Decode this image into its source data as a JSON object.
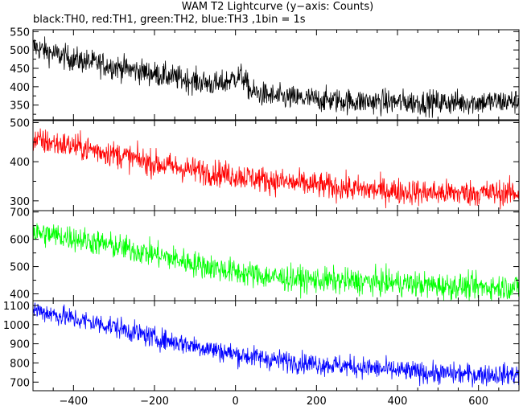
{
  "chart_data": {
    "type": "line",
    "title": "WAM T2 Lightcurve (y−axis: Counts)",
    "subtitle": "black:TH0, red:TH1, green:TH2, blue:TH3 ,1bin = 1s",
    "xlim": [
      -500,
      700
    ],
    "xticks": [
      -400,
      -200,
      0,
      200,
      400,
      600
    ],
    "xtick_labels": [
      "−400",
      "−200",
      "0",
      "200",
      "400",
      "600"
    ],
    "grid": false,
    "panels": [
      {
        "name": "TH0",
        "color": "#000000",
        "ylim": [
          310,
          555
        ],
        "yticks": [
          350,
          400,
          450,
          500,
          550
        ],
        "ytick_labels": [
          "350",
          "400",
          "450",
          "500",
          "550"
        ],
        "trend_x": [
          -500,
          -450,
          -400,
          -300,
          -200,
          -100,
          -40,
          0,
          15,
          40,
          100,
          200,
          300,
          400,
          500,
          600,
          700
        ],
        "trend_y": [
          510,
          490,
          475,
          455,
          435,
          415,
          405,
          425,
          430,
          385,
          372,
          365,
          360,
          358,
          357,
          358,
          360
        ],
        "noise_sigma": 17
      },
      {
        "name": "TH1",
        "color": "#ff0000",
        "ylim": [
          275,
          505
        ],
        "yticks": [
          300,
          400,
          500
        ],
        "ytick_labels": [
          "300",
          "400",
          "500"
        ],
        "trend_x": [
          -500,
          -400,
          -300,
          -200,
          -100,
          0,
          100,
          200,
          300,
          400,
          500,
          600,
          700
        ],
        "trend_y": [
          455,
          440,
          420,
          395,
          378,
          365,
          350,
          340,
          330,
          325,
          320,
          320,
          320
        ],
        "noise_sigma": 17
      },
      {
        "name": "TH2",
        "color": "#00ff00",
        "ylim": [
          375,
          705
        ],
        "yticks": [
          400,
          500,
          600,
          700
        ],
        "ytick_labels": [
          "400",
          "500",
          "600",
          "700"
        ],
        "trend_x": [
          -500,
          -400,
          -300,
          -200,
          -100,
          0,
          100,
          200,
          300,
          400,
          500,
          600,
          700
        ],
        "trend_y": [
          625,
          605,
          575,
          545,
          510,
          480,
          460,
          450,
          445,
          440,
          430,
          425,
          425
        ],
        "noise_sigma": 24
      },
      {
        "name": "TH3",
        "color": "#0000ff",
        "ylim": [
          655,
          1125
        ],
        "yticks": [
          700,
          800,
          900,
          1000,
          1100
        ],
        "ytick_labels": [
          "700",
          "800",
          "900",
          "1000",
          "1100"
        ],
        "trend_x": [
          -500,
          -400,
          -300,
          -200,
          -100,
          0,
          100,
          200,
          300,
          400,
          500,
          600,
          700
        ],
        "trend_y": [
          1080,
          1030,
          990,
          930,
          890,
          845,
          815,
          795,
          780,
          760,
          745,
          740,
          740
        ],
        "noise_sigma": 28
      }
    ]
  }
}
